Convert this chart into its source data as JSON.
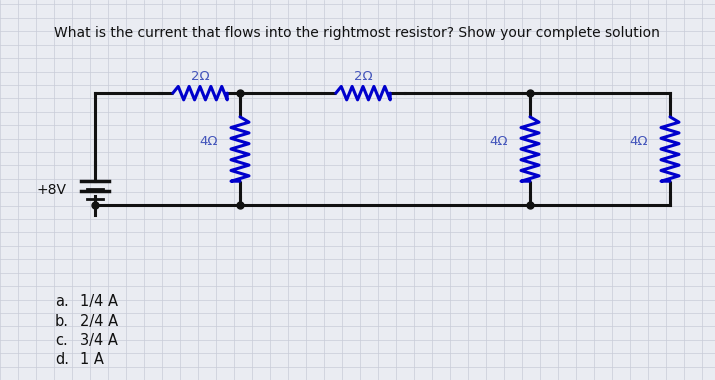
{
  "title": "What is the current that flows into the rightmost resistor? Show your complete solution",
  "title_fontsize": 10.0,
  "bg_color": "#eaecf2",
  "circuit_line_color": "#111111",
  "resistor_color": "#0000cc",
  "label_color": "#4455bb",
  "grid_color": "#c8ccd8",
  "resistor_labels": [
    "2Ω",
    "2Ω",
    "4Ω",
    "4Ω",
    "4Ω"
  ],
  "voltage_label": "+8V",
  "choices_letters": [
    "a.",
    "b.",
    "c.",
    "d."
  ],
  "choices_text": [
    "1/4 A",
    "2/4 A",
    "3/4 A",
    "1 A"
  ],
  "choice_fontsize": 10.5,
  "label_fontsize": 9.5
}
